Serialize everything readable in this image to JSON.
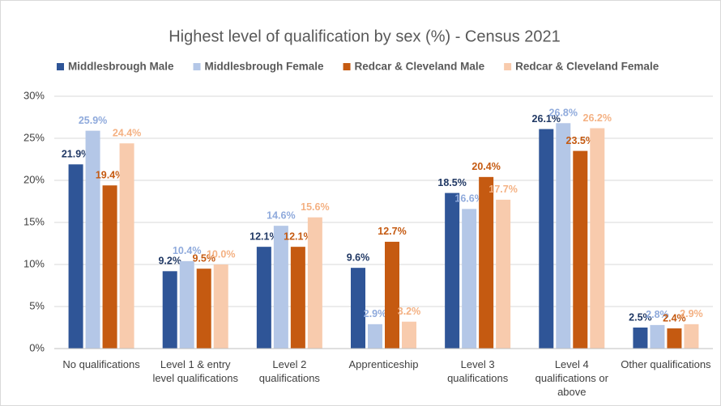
{
  "chart_data": {
    "type": "bar",
    "title": "Highest level of qualification by sex (%) - Census 2021",
    "categories": [
      "No qualifications",
      "Level 1 & entry level qualifications",
      "Level 2 qualifications",
      "Apprenticeship",
      "Level 3 qualifications",
      "Level 4 qualifications or above",
      "Other qualifications"
    ],
    "series": [
      {
        "name": "Middlesbrough Male",
        "color": "#2f5597",
        "label_color": "#203864",
        "values": [
          21.9,
          9.2,
          12.1,
          9.6,
          18.5,
          26.1,
          2.5
        ],
        "value_labels": [
          "21.9%",
          "9.2%",
          "12.1%",
          "9.6%",
          "18.5%",
          "26.1%",
          "2.5%"
        ]
      },
      {
        "name": "Middlesbrough Female",
        "color": "#b4c7e7",
        "label_color": "#8faadc",
        "values": [
          25.9,
          10.4,
          14.6,
          2.9,
          16.6,
          26.8,
          2.8
        ],
        "value_labels": [
          "25.9%",
          "10.4%",
          "14.6%",
          "2.9%",
          "16.6%",
          "26.8%",
          "2.8%"
        ]
      },
      {
        "name": "Redcar & Cleveland Male",
        "color": "#c55a11",
        "label_color": "#c55a11",
        "values": [
          19.4,
          9.5,
          12.1,
          12.7,
          20.4,
          23.5,
          2.4
        ],
        "value_labels": [
          "19.4%",
          "9.5%",
          "12.1%",
          "12.7%",
          "20.4%",
          "23.5%",
          "2.4%"
        ]
      },
      {
        "name": "Redcar & Cleveland Female",
        "color": "#f8cbad",
        "label_color": "#f4b183",
        "values": [
          24.4,
          10.0,
          15.6,
          3.2,
          17.7,
          26.2,
          2.9
        ],
        "value_labels": [
          "24.4%",
          "10.0%",
          "15.6%",
          "3.2%",
          "17.7%",
          "26.2%",
          "2.9%"
        ]
      }
    ],
    "ylim": [
      0,
      30
    ],
    "yticks": [
      {
        "value": 0,
        "label": "0%"
      },
      {
        "value": 5,
        "label": "5%"
      },
      {
        "value": 10,
        "label": "10%"
      },
      {
        "value": 15,
        "label": "15%"
      },
      {
        "value": 20,
        "label": "20%"
      },
      {
        "value": 25,
        "label": "25%"
      },
      {
        "value": 30,
        "label": "30%"
      }
    ],
    "grid": true
  }
}
